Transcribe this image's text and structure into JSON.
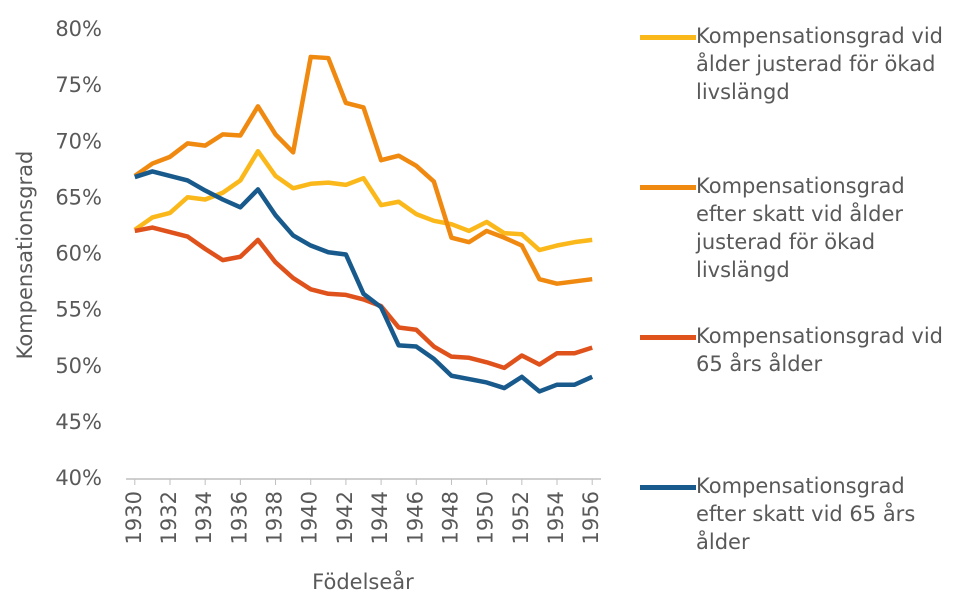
{
  "chart_data": {
    "type": "line",
    "ylabel": "Kompensationsgrad",
    "xlabel": "Födelseår",
    "x": [
      1930,
      1931,
      1932,
      1933,
      1934,
      1935,
      1936,
      1937,
      1938,
      1939,
      1940,
      1941,
      1942,
      1943,
      1944,
      1945,
      1946,
      1947,
      1948,
      1949,
      1950,
      1951,
      1952,
      1953,
      1954,
      1955,
      1956
    ],
    "xlim": [
      1929.5,
      1956.5
    ],
    "xticks": [
      1930,
      1932,
      1934,
      1936,
      1938,
      1940,
      1942,
      1944,
      1946,
      1948,
      1950,
      1952,
      1954,
      1956
    ],
    "ylim": [
      40,
      80
    ],
    "yticks": [
      {
        "value": 40,
        "label": "40%"
      },
      {
        "value": 45,
        "label": "45%"
      },
      {
        "value": 50,
        "label": "50%"
      },
      {
        "value": 55,
        "label": "55%"
      },
      {
        "value": 60,
        "label": "60%"
      },
      {
        "value": 65,
        "label": "65%"
      },
      {
        "value": 70,
        "label": "70%"
      },
      {
        "value": 75,
        "label": "75%"
      },
      {
        "value": 80,
        "label": "80%"
      }
    ],
    "grid": false,
    "legend": "right",
    "series": [
      {
        "name": "Kompensationsgrad vid ålder justerad för ökad livslängd",
        "color": "#fbb81a",
        "values": [
          62.2,
          63.3,
          63.7,
          65.1,
          64.9,
          65.5,
          66.6,
          69.2,
          67.0,
          65.9,
          66.3,
          66.4,
          66.2,
          66.8,
          64.4,
          64.7,
          63.6,
          63.0,
          62.7,
          62.1,
          62.9,
          61.9,
          61.8,
          60.4,
          60.8,
          61.1,
          61.3
        ]
      },
      {
        "name": "Kompensationsgrad efter skatt vid ålder justerad för ökad livslängd",
        "color": "#f0890f",
        "values": [
          67.0,
          68.1,
          68.7,
          69.9,
          69.7,
          70.7,
          70.6,
          73.2,
          70.7,
          69.1,
          77.6,
          77.5,
          73.5,
          73.1,
          68.4,
          68.8,
          67.9,
          66.5,
          61.5,
          61.1,
          62.1,
          61.5,
          60.8,
          57.8,
          57.4,
          57.6,
          57.8
        ]
      },
      {
        "name": "Kompensationsgrad vid 65 års ålder",
        "color": "#e0521c",
        "values": [
          62.1,
          62.4,
          62.0,
          61.6,
          60.5,
          59.5,
          59.8,
          61.3,
          59.3,
          57.9,
          56.9,
          56.5,
          56.4,
          56.0,
          55.4,
          53.5,
          53.3,
          51.8,
          50.9,
          50.8,
          50.4,
          49.9,
          51.0,
          50.2,
          51.2,
          51.2,
          51.7
        ]
      },
      {
        "name": "Kompensationsgrad efter skatt vid 65 års ålder",
        "color": "#185a8c",
        "values": [
          66.9,
          67.4,
          67.0,
          66.6,
          65.7,
          64.9,
          64.2,
          65.8,
          63.5,
          61.7,
          60.8,
          60.2,
          60.0,
          56.5,
          55.3,
          51.9,
          51.8,
          50.7,
          49.2,
          48.9,
          48.6,
          48.1,
          49.1,
          47.8,
          48.4,
          48.4,
          49.1
        ]
      }
    ]
  }
}
